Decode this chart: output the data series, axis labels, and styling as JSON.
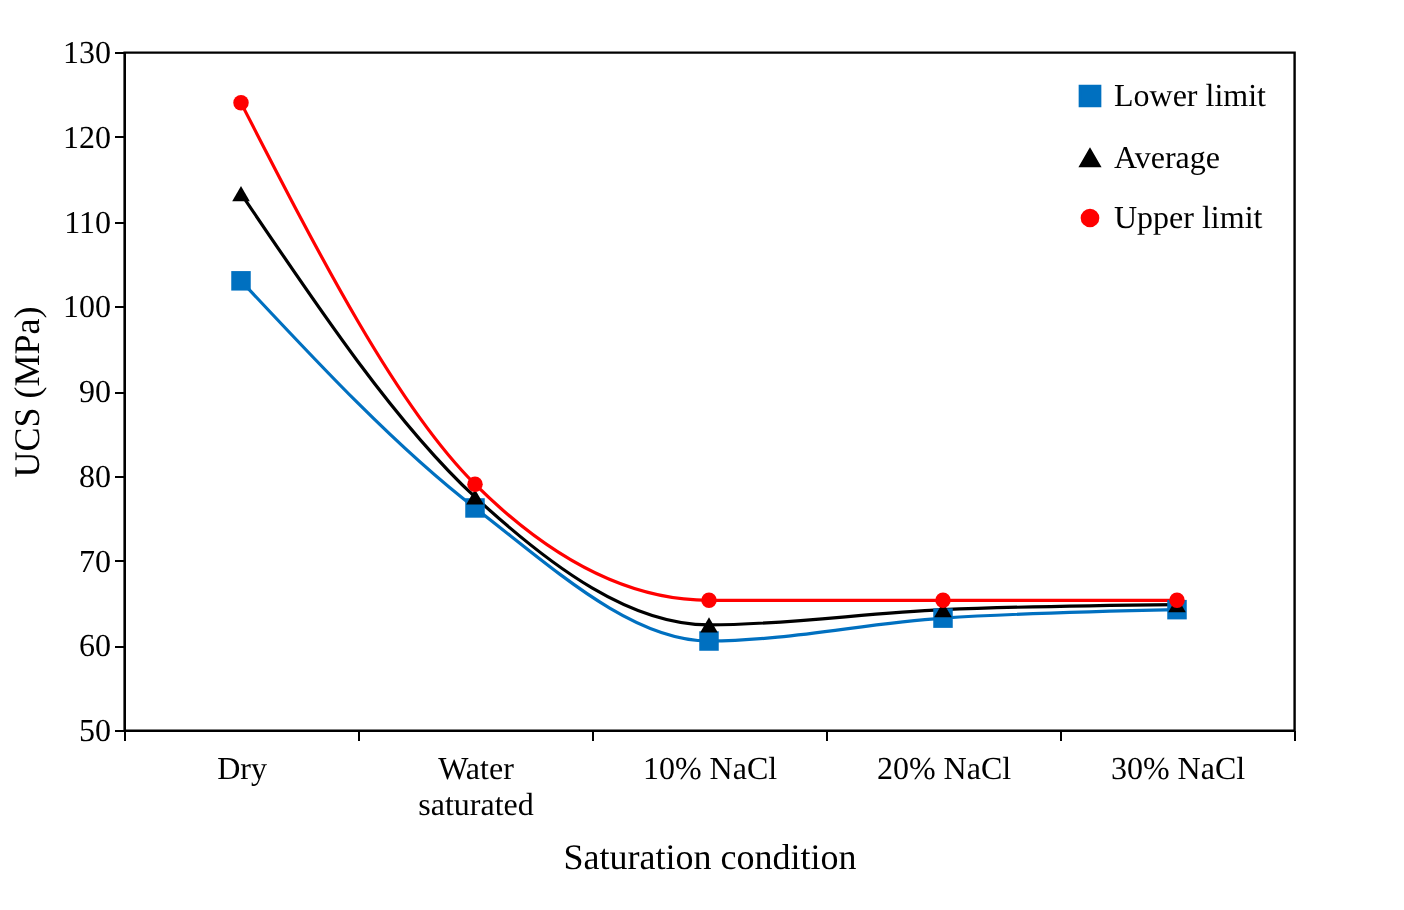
{
  "chart_data": {
    "type": "line",
    "xlabel": "Saturation condition",
    "ylabel": "UCS (MPa)",
    "categories": [
      "Dry",
      "Water saturated",
      "10% NaCl",
      "20% NaCl",
      "30% NaCl"
    ],
    "ylim": [
      50,
      130
    ],
    "yticks": [
      50,
      60,
      70,
      80,
      90,
      100,
      110,
      120,
      130
    ],
    "grid": false,
    "legend": "top right",
    "series": [
      {
        "name": "Lower limit",
        "color": "#0070c0",
        "marker": "square",
        "values": [
          103,
          76.2,
          60.5,
          63.2,
          64.2
        ]
      },
      {
        "name": "Average",
        "color": "#000000",
        "marker": "triangle",
        "values": [
          113.3,
          77.5,
          62.4,
          64.2,
          64.8
        ]
      },
      {
        "name": "Upper limit",
        "color": "#ff0000",
        "marker": "circle",
        "values": [
          124,
          79,
          65.3,
          65.3,
          65.3
        ]
      }
    ]
  }
}
